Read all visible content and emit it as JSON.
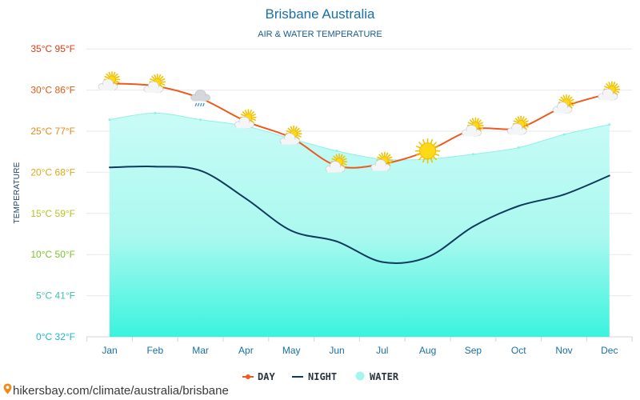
{
  "chart_data": {
    "type": "line",
    "title": "Brisbane Australia",
    "subtitle": "AIR & WATER TEMPERATURE",
    "ylabel": "TEMPERATURE",
    "categories": [
      "Jan",
      "Feb",
      "Mar",
      "Apr",
      "May",
      "Jun",
      "Jul",
      "Aug",
      "Sep",
      "Oct",
      "Nov",
      "Dec"
    ],
    "ylim": [
      0,
      35
    ],
    "yticks": [
      {
        "value": 0,
        "label": "0°C 32°F",
        "color": "#1ab8c8"
      },
      {
        "value": 5,
        "label": "5°C 41°F",
        "color": "#3cc0b0"
      },
      {
        "value": 10,
        "label": "10°C 50°F",
        "color": "#7dc42a"
      },
      {
        "value": 15,
        "label": "15°C 59°F",
        "color": "#b8c21e"
      },
      {
        "value": 20,
        "label": "20°C 68°F",
        "color": "#e0a818"
      },
      {
        "value": 25,
        "label": "25°C 77°F",
        "color": "#e88a18"
      },
      {
        "value": 30,
        "label": "30°C 86°F",
        "color": "#e25a12"
      },
      {
        "value": 35,
        "label": "35°C 95°F",
        "color": "#e23c10"
      }
    ],
    "grid": true,
    "legend_position": "bottom-center",
    "series": [
      {
        "name": "DAY",
        "type": "line",
        "color": "#ee5a1e",
        "values": [
          30.8,
          30.5,
          29.0,
          26.2,
          24.2,
          20.8,
          21.0,
          22.6,
          25.2,
          25.4,
          28.0,
          29.6
        ]
      },
      {
        "name": "NIGHT",
        "type": "line",
        "color": "#0f3a5c",
        "values": [
          20.6,
          20.7,
          20.2,
          16.8,
          12.9,
          11.6,
          9.1,
          9.7,
          13.4,
          15.9,
          17.3,
          19.6
        ]
      },
      {
        "name": "WATER",
        "type": "area",
        "color": "#b7fbf4",
        "values": [
          26.4,
          27.2,
          26.4,
          25.6,
          24.1,
          22.6,
          21.6,
          21.6,
          22.2,
          23.0,
          24.6,
          25.8
        ]
      }
    ],
    "weather_icons": [
      "partly-cloudy",
      "partly-cloudy",
      "cloud-rain",
      "partly-cloudy",
      "partly-cloudy",
      "partly-cloudy",
      "partly-cloudy",
      "sun",
      "partly-cloudy",
      "partly-cloudy",
      "partly-cloudy",
      "partly-cloudy"
    ]
  },
  "source": "hikersbay.com/climate/australia/brisbane"
}
